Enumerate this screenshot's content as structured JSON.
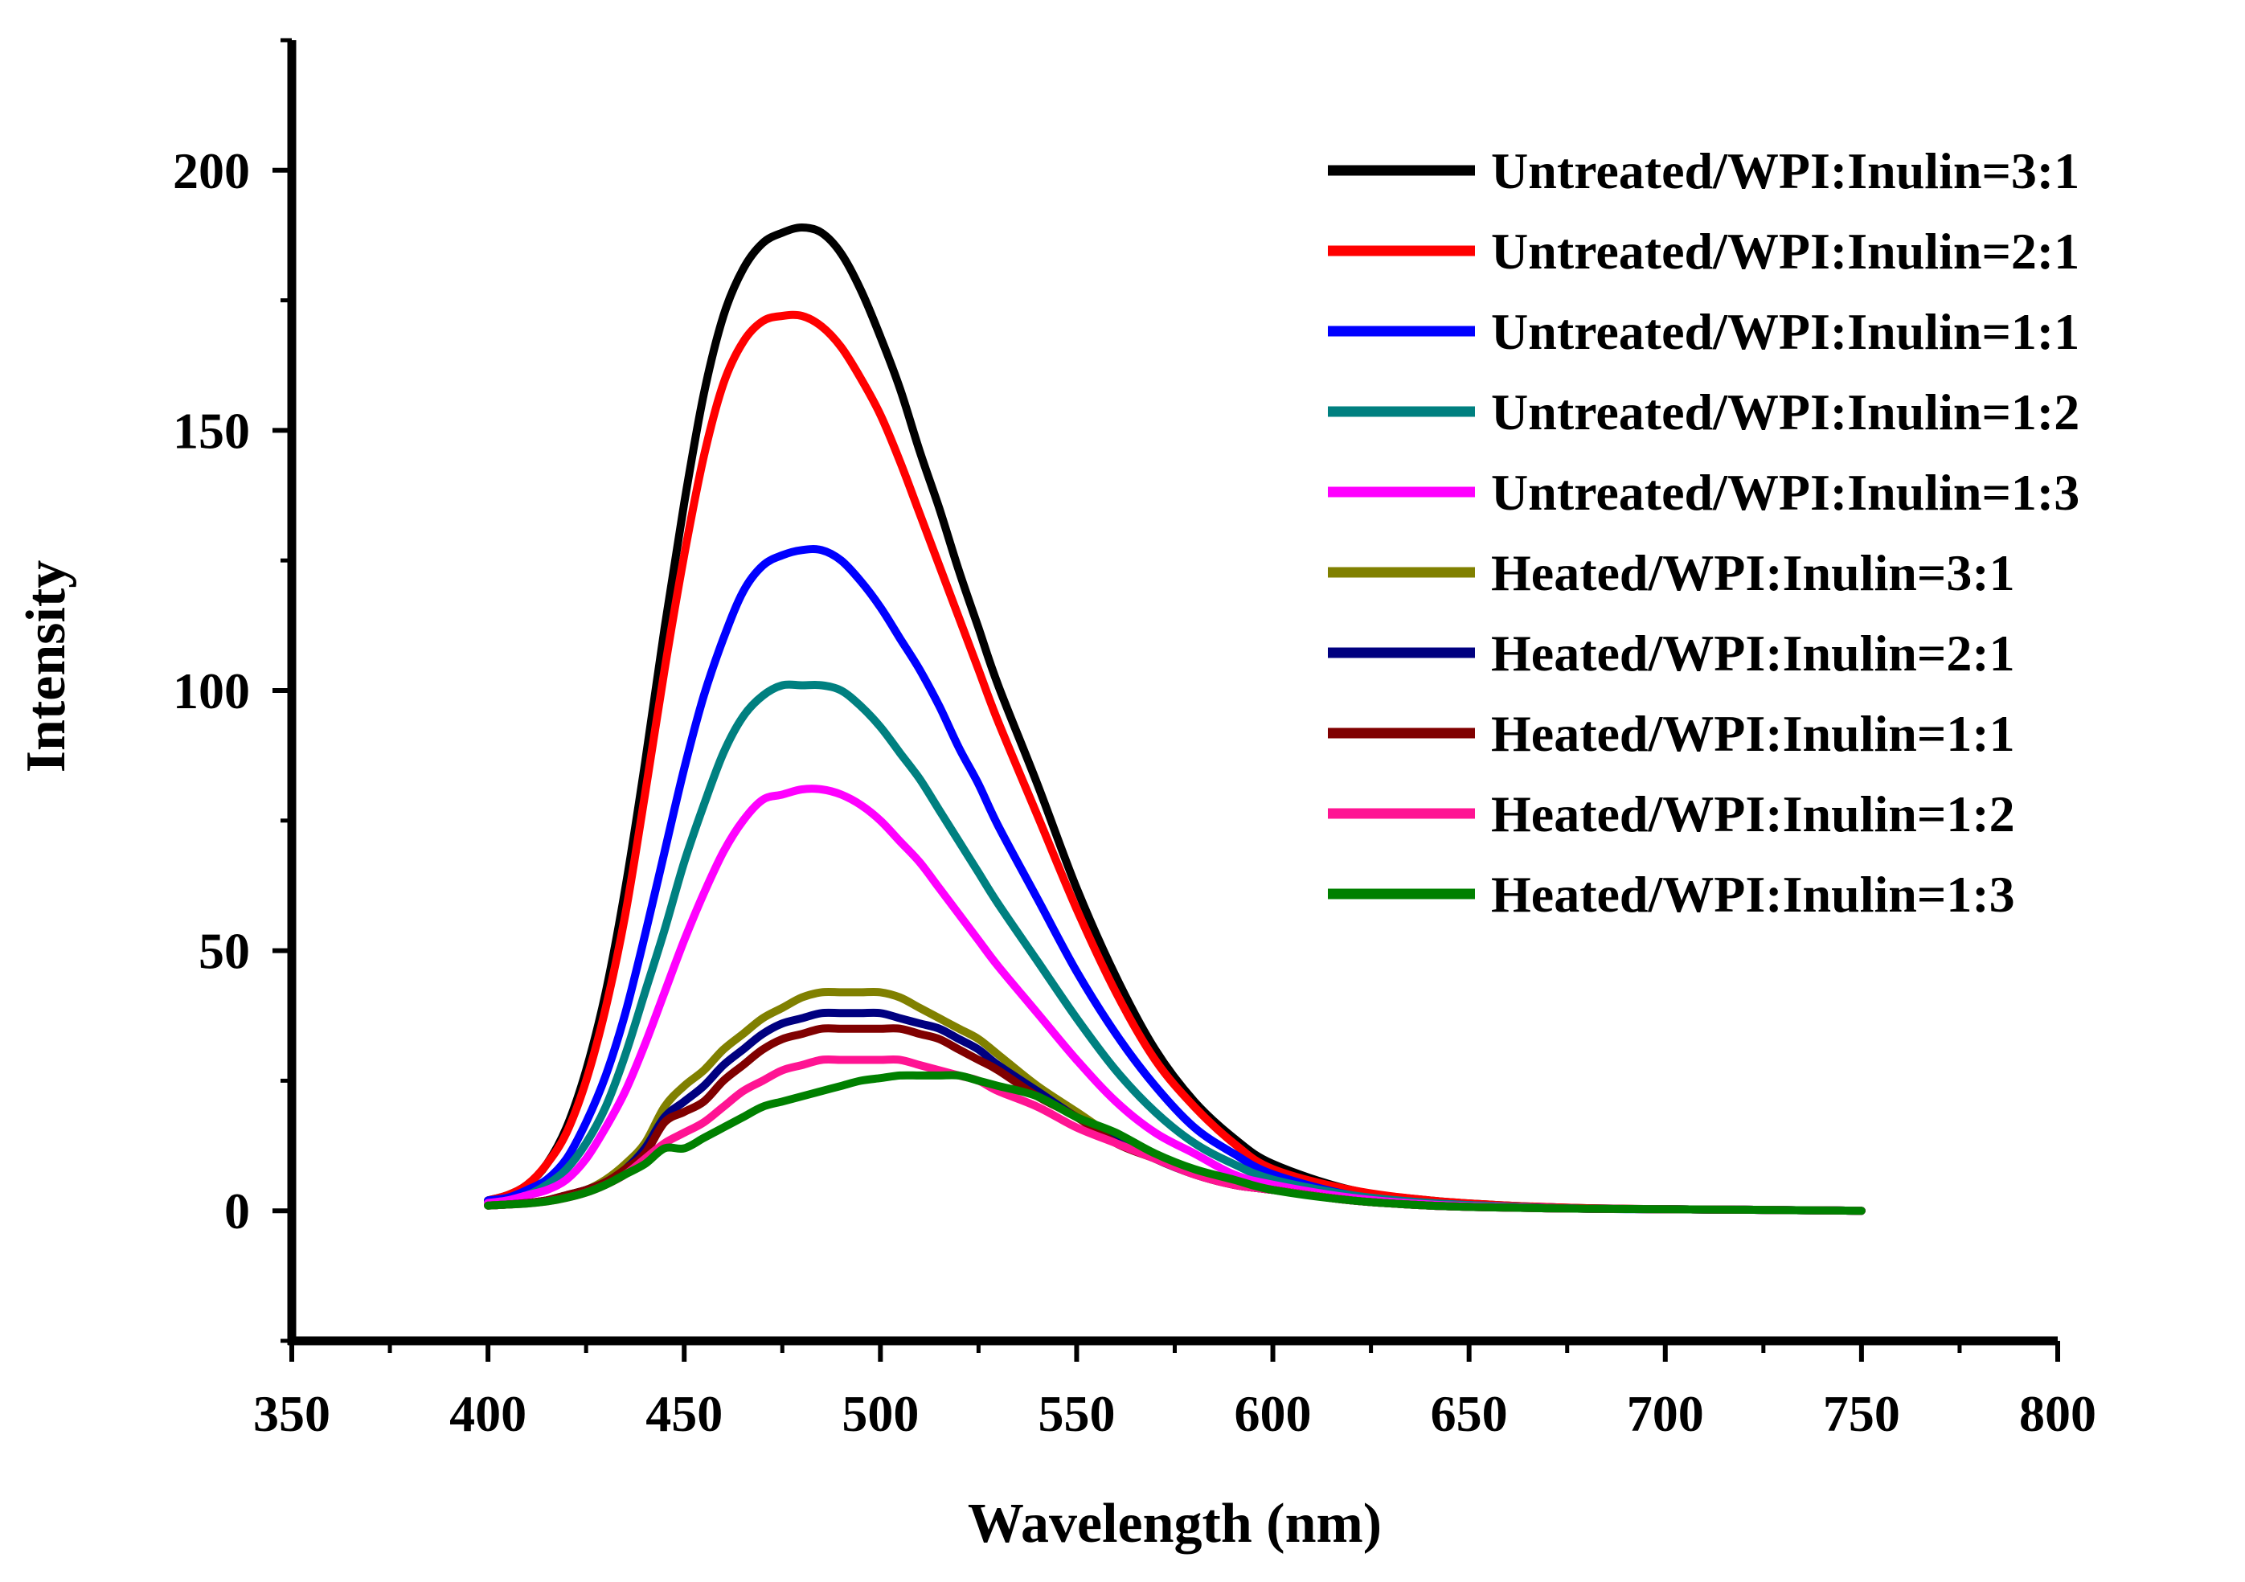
{
  "chart_data": {
    "type": "line",
    "title": "",
    "xlabel": "Wavelength (nm)",
    "ylabel": "Intensity",
    "xlim": [
      350,
      800
    ],
    "ylim": [
      -25,
      225
    ],
    "x_ticks": [
      350,
      400,
      450,
      500,
      550,
      600,
      650,
      700,
      750,
      800
    ],
    "y_ticks": [
      0,
      50,
      100,
      150,
      200
    ],
    "x_tick_labels": [
      "350",
      "400",
      "450",
      "500",
      "550",
      "600",
      "650",
      "700",
      "750",
      "800"
    ],
    "y_tick_labels": [
      "0",
      "50",
      "100",
      "150",
      "200"
    ],
    "grid": false,
    "legend_position": "top-right",
    "x": [
      400,
      405,
      410,
      415,
      420,
      425,
      430,
      435,
      440,
      445,
      450,
      455,
      460,
      465,
      470,
      475,
      480,
      485,
      490,
      495,
      500,
      505,
      510,
      515,
      520,
      525,
      530,
      540,
      550,
      560,
      570,
      580,
      590,
      600,
      620,
      640,
      660,
      680,
      700,
      720,
      750
    ],
    "series": [
      {
        "name": "Untreated/WPI:Inulin=3:1",
        "color": "#000000",
        "values": [
          2,
          3,
          5,
          9,
          16,
          27,
          42,
          62,
          86,
          112,
          136,
          157,
          172,
          181,
          186,
          188,
          189,
          188,
          184,
          177,
          168,
          158,
          146,
          135,
          123,
          112,
          101,
          82,
          62,
          45,
          31,
          21,
          14,
          9,
          4,
          2,
          1,
          0.5,
          0.3,
          0.2,
          0
        ]
      },
      {
        "name": "Untreated/WPI:Inulin=2:1",
        "color": "#ff0000",
        "values": [
          2,
          3,
          5,
          9,
          15,
          25,
          39,
          57,
          80,
          104,
          126,
          145,
          159,
          167,
          171,
          172,
          172,
          170,
          166,
          160,
          153,
          144,
          134,
          124,
          114,
          104,
          94,
          76,
          58,
          42,
          29,
          20,
          13,
          8,
          4,
          2,
          1,
          0.5,
          0.3,
          0.2,
          0
        ]
      },
      {
        "name": "Untreated/WPI:Inulin=1:1",
        "color": "#0000ff",
        "values": [
          2,
          2.5,
          4,
          6,
          10,
          17,
          26,
          38,
          53,
          69,
          85,
          99,
          110,
          119,
          124,
          126,
          127,
          127,
          125,
          121,
          116,
          110,
          104,
          97,
          89,
          82,
          74,
          60,
          46,
          34,
          24,
          16,
          11,
          7,
          3,
          1.5,
          0.8,
          0.4,
          0.3,
          0.2,
          0
        ]
      },
      {
        "name": "Untreated/WPI:Inulin=1:2",
        "color": "#008080",
        "values": [
          1.5,
          2,
          3,
          5,
          8,
          13,
          20,
          30,
          42,
          54,
          67,
          78,
          88,
          95,
          99,
          101,
          101,
          101,
          100,
          97,
          93,
          88,
          83,
          77,
          71,
          65,
          59,
          48,
          37,
          27,
          19,
          13,
          9,
          6,
          3,
          1.5,
          0.8,
          0.4,
          0.3,
          0.2,
          0
        ]
      },
      {
        "name": "Untreated/WPI:Inulin=1:3",
        "color": "#ff00ff",
        "values": [
          1.5,
          2,
          3,
          4,
          6,
          10,
          16,
          23,
          32,
          42,
          52,
          61,
          69,
          75,
          79,
          80,
          81,
          81,
          80,
          78,
          75,
          71,
          67,
          62,
          57,
          52,
          47,
          38,
          29,
          21,
          15,
          11,
          7,
          5,
          2.5,
          1.2,
          0.7,
          0.4,
          0.3,
          0.2,
          0
        ]
      },
      {
        "name": "Heated/WPI:Inulin=3:1",
        "color": "#808000",
        "values": [
          1,
          1.2,
          1.5,
          2,
          3,
          4,
          6,
          9,
          13,
          20,
          24,
          27,
          31,
          34,
          37,
          39,
          41,
          42,
          42,
          42,
          42,
          41,
          39,
          37,
          35,
          33,
          30,
          24,
          19,
          14,
          10,
          7,
          5,
          4,
          2,
          1,
          0.6,
          0.4,
          0.3,
          0.2,
          0
        ]
      },
      {
        "name": "Heated/WPI:Inulin=2:1",
        "color": "#000080",
        "values": [
          1,
          1.2,
          1.5,
          2,
          3,
          4,
          5.5,
          8,
          12,
          18,
          21,
          24,
          28,
          31,
          34,
          36,
          37,
          38,
          38,
          38,
          38,
          37,
          36,
          35,
          33,
          31,
          28,
          23,
          18,
          14,
          10,
          7,
          5,
          4,
          2,
          1,
          0.6,
          0.4,
          0.3,
          0.2,
          0
        ]
      },
      {
        "name": "Heated/WPI:Inulin=1:1",
        "color": "#800000",
        "values": [
          1,
          1.2,
          1.5,
          2,
          3,
          4,
          5.5,
          8,
          11,
          17,
          19,
          21,
          25,
          28,
          31,
          33,
          34,
          35,
          35,
          35,
          35,
          35,
          34,
          33,
          31,
          29,
          27,
          22,
          18,
          13,
          10,
          7,
          5,
          4,
          2,
          1,
          0.6,
          0.4,
          0.3,
          0.2,
          0
        ]
      },
      {
        "name": "Heated/WPI:Inulin=1:2",
        "color": "#ff1493",
        "values": [
          1,
          1.2,
          1.4,
          1.8,
          2.5,
          3.5,
          5,
          7,
          10,
          13,
          15,
          17,
          20,
          23,
          25,
          27,
          28,
          29,
          29,
          29,
          29,
          29,
          28,
          27,
          26,
          25,
          23,
          20,
          16,
          13,
          10,
          7,
          5,
          4,
          2,
          1,
          0.6,
          0.4,
          0.3,
          0.2,
          0
        ]
      },
      {
        "name": "Heated/WPI:Inulin=1:3",
        "color": "#008000",
        "values": [
          1,
          1.2,
          1.4,
          1.8,
          2.5,
          3.5,
          5,
          7,
          9,
          12,
          12,
          14,
          16,
          18,
          20,
          21,
          22,
          23,
          24,
          25,
          25.5,
          26,
          26,
          26,
          26,
          25,
          24,
          22,
          18,
          15,
          11,
          8,
          6,
          4,
          2,
          1,
          0.6,
          0.4,
          0.3,
          0.2,
          0
        ]
      }
    ]
  }
}
